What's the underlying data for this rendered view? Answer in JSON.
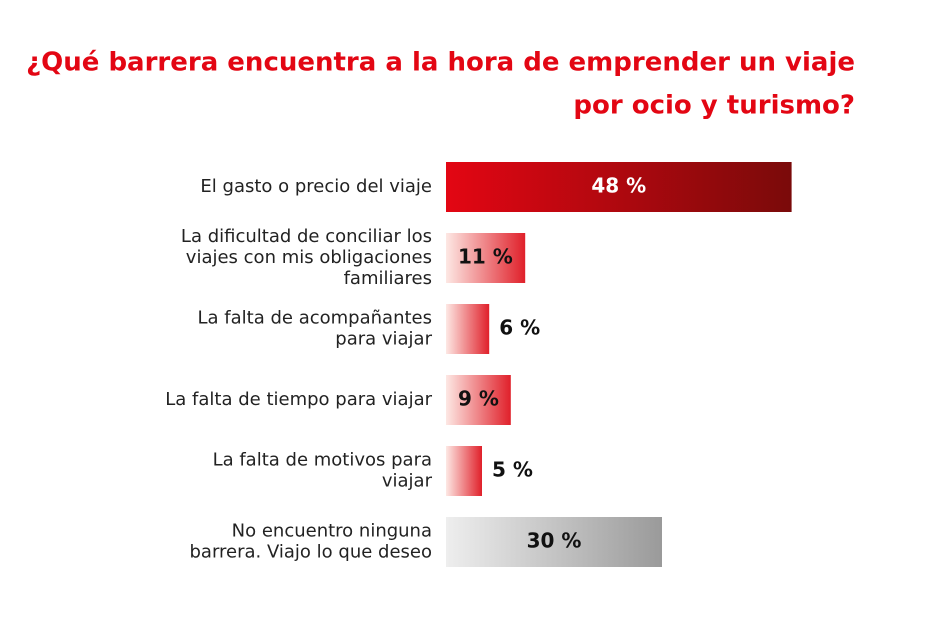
{
  "chart_data": {
    "type": "bar",
    "title": [
      "¿Qué barrera encuentra a la hora de emprender un viaje",
      "por ocio y turismo?"
    ],
    "categories": [
      [
        "El gasto o precio del viaje"
      ],
      [
        "La dificultad de conciliar los",
        "viajes con mis obligaciones",
        "familiares"
      ],
      [
        "La falta de acompañantes",
        "para viajar"
      ],
      [
        "La falta de tiempo para viajar"
      ],
      [
        "La falta de motivos para",
        "viajar"
      ],
      [
        "No encuentro ninguna",
        "barrera. Viajo lo que deseo"
      ]
    ],
    "values": [
      48,
      11,
      6,
      9,
      5,
      30
    ],
    "value_labels": [
      "48 %",
      "11 %",
      "6 %",
      "9 %",
      "5 %",
      "30 %"
    ],
    "colors": [
      "#c8101e",
      "#e0202a",
      "#e0202a",
      "#e0202a",
      "#e0202a",
      "#9a9a9a"
    ]
  }
}
